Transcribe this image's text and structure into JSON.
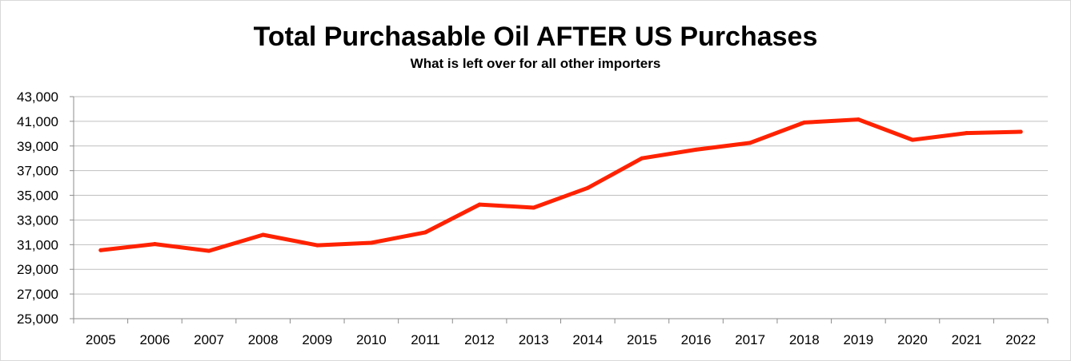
{
  "chart_data": {
    "type": "line",
    "title": "Total Purchasable Oil AFTER US Purchases",
    "subtitle": "What is left over for all other importers",
    "xlabel": "",
    "ylabel": "",
    "categories": [
      "2005",
      "2006",
      "2007",
      "2008",
      "2009",
      "2010",
      "2011",
      "2012",
      "2013",
      "2014",
      "2015",
      "2016",
      "2017",
      "2018",
      "2019",
      "2020",
      "2021",
      "2022"
    ],
    "series": [
      {
        "values": [
          30550,
          31050,
          30500,
          31800,
          30950,
          31150,
          32000,
          34250,
          34000,
          35600,
          38000,
          38700,
          39250,
          40900,
          41150,
          39500,
          40050,
          40150
        ]
      }
    ],
    "ylim": [
      25000,
      43000
    ],
    "yticks": [
      25000,
      27000,
      29000,
      31000,
      33000,
      35000,
      37000,
      39000,
      41000,
      43000
    ],
    "ytick_labels": [
      "25,000",
      "27,000",
      "29,000",
      "31,000",
      "33,000",
      "35,000",
      "37,000",
      "39,000",
      "41,000",
      "43,000"
    ],
    "grid": true,
    "legend": "none",
    "colors": {
      "line": "#ff2200",
      "grid": "#bfbfbf",
      "axis": "#8c8c8c"
    }
  }
}
